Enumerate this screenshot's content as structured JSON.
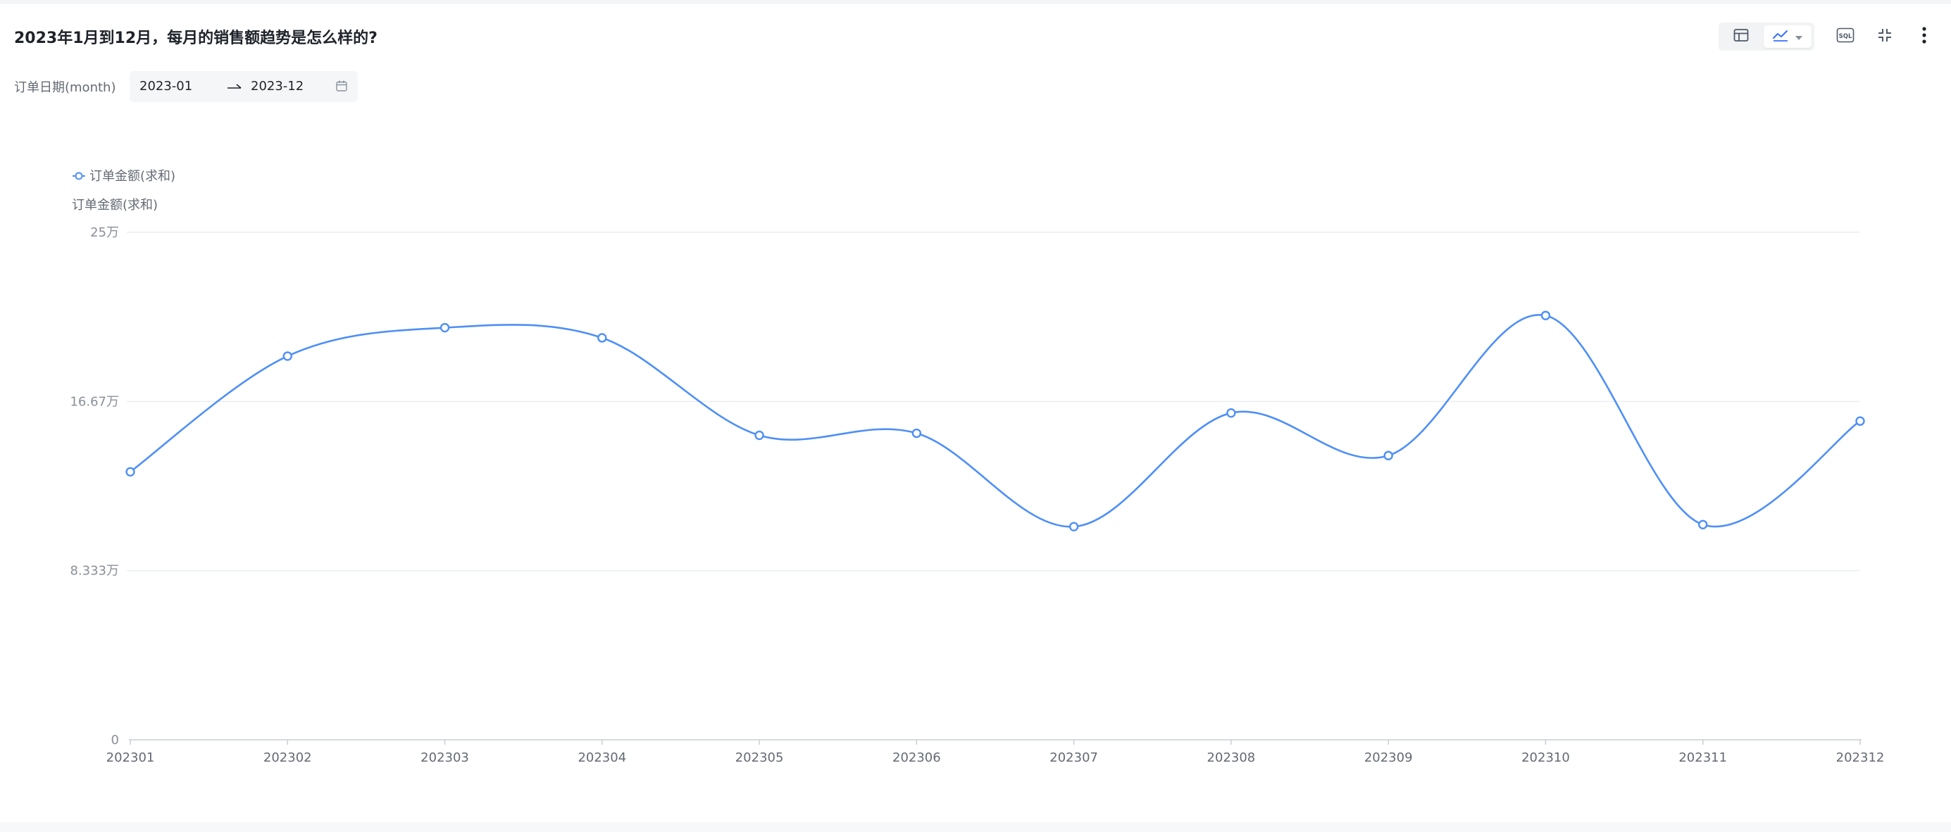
{
  "page": {
    "title": "2023年1月到12月，每月的销售额趋势是怎么样的?"
  },
  "toolbar": {
    "view_switch": {
      "table_icon": "table-icon",
      "chart_icon": "line-chart-icon",
      "dropdown_icon": "caret-down-icon"
    },
    "sql_icon": "sql-icon",
    "collapse_icon": "collapse-icon",
    "more_icon": "more-vertical-icon"
  },
  "filter": {
    "label": "订单日期(month)",
    "start": "2023-01",
    "end": "2023-12",
    "arrow_icon": "arrow-right-icon",
    "calendar_icon": "calendar-icon"
  },
  "colors": {
    "series": "#4e8ff7",
    "grid": "#eceef2",
    "axis": "#c9cdd4",
    "text_secondary": "#8a8f99"
  },
  "chart_data": {
    "type": "line",
    "smooth": true,
    "ylabel": "订单金额(求和)",
    "legend_position": "top-left",
    "grid": true,
    "x": [
      "202301",
      "202302",
      "202303",
      "202304",
      "202305",
      "202306",
      "202307",
      "202308",
      "202309",
      "202310",
      "202311",
      "202312"
    ],
    "series": [
      {
        "name": "订单金额(求和)",
        "values": [
          132000,
          189000,
          203000,
          198000,
          150000,
          151000,
          105000,
          161000,
          140000,
          209000,
          106000,
          157000
        ]
      }
    ],
    "ylim": [
      0,
      250000
    ],
    "yticks": [
      0,
      83333,
      166667,
      250000
    ],
    "ytick_labels": [
      "0",
      "8.333万",
      "16.67万",
      "25万"
    ]
  }
}
